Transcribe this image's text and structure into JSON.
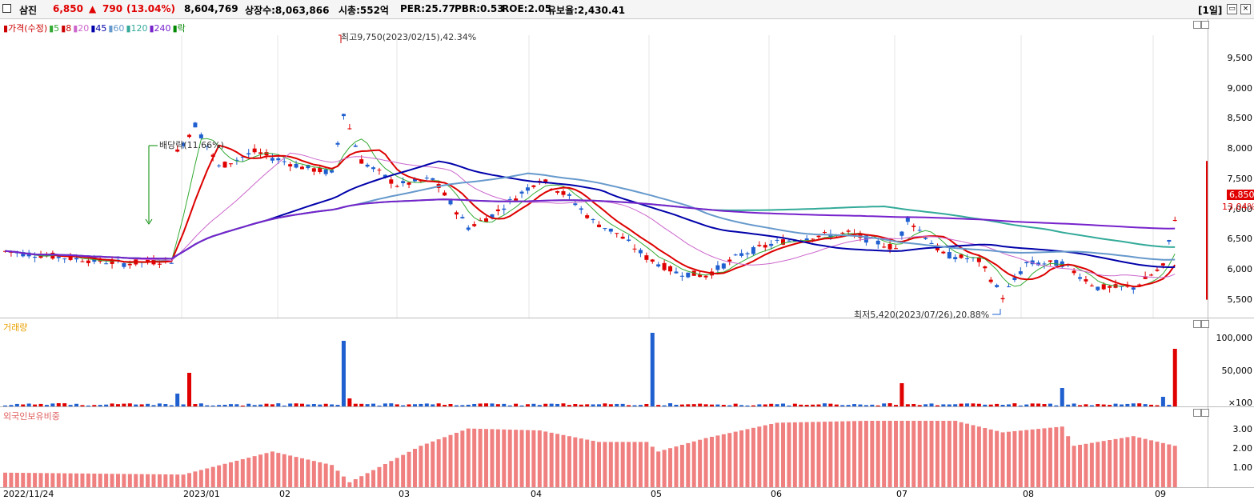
{
  "header": {
    "stock_name": "삼진",
    "price": "6,850",
    "change_arrow": "▲",
    "change": "790",
    "change_pct": "(13.04%)",
    "volume": "8,604,769",
    "listed_shares": "상장수:8,063,866",
    "market_cap": "시총:552억",
    "per": "PER:25.77",
    "pbr": "PBR:0.53",
    "roe": "ROE:2.05",
    "float_ratio": "유보율:2,430.41",
    "period": "[1일]"
  },
  "price_panel": {
    "legend": [
      {
        "label": "가격(수정)",
        "color": "#cc0000"
      },
      {
        "label": "5",
        "color": "#33aa33"
      },
      {
        "label": "8",
        "color": "#cc0000"
      },
      {
        "label": "20",
        "color": "#cc66cc"
      },
      {
        "label": "45",
        "color": "#0000aa"
      },
      {
        "label": "60",
        "color": "#6699cc"
      },
      {
        "label": "120",
        "color": "#33aa99"
      },
      {
        "label": "240",
        "color": "#7722cc"
      },
      {
        "label": "락",
        "color": "#008800"
      }
    ],
    "high_annotation": "최고9,750(2023/02/15),42.34%",
    "low_annotation": "최저5,420(2023/07/26),20.88%",
    "dividend_annotation": "배당락(11.66%)",
    "y_ticks": [
      "9,500",
      "9,000",
      "8,500",
      "8,000",
      "7,500",
      "7,000",
      "6,500",
      "6,000",
      "5,500"
    ],
    "current_price_tag": "6,850",
    "current_pct": "13.04%"
  },
  "volume_panel": {
    "title": "거래량",
    "y_ticks": [
      "100,000",
      "50,000",
      "×100"
    ]
  },
  "foreign_panel": {
    "title": "외국인보유비중",
    "y_ticks": [
      "3.00",
      "2.00",
      "1.00"
    ]
  },
  "x_axis": [
    "2022/11/24",
    "2023/01",
    "02",
    "03",
    "04",
    "05",
    "06",
    "07",
    "08",
    "09"
  ],
  "colors": {
    "up": "#e00000",
    "down": "#1f5fd0",
    "foreign_bar": "#f08080"
  }
}
